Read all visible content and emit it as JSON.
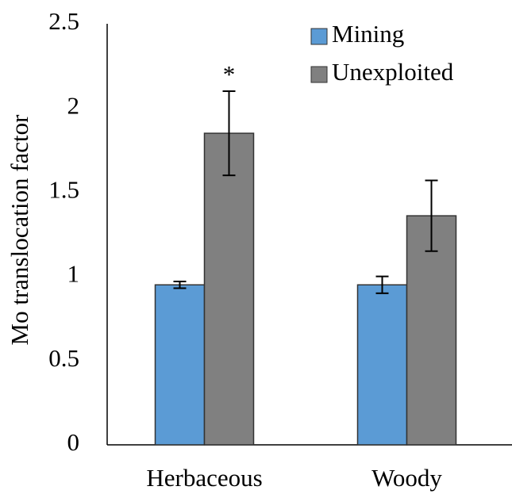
{
  "chart_data": {
    "type": "bar",
    "y_label": "Mo translocation factor",
    "categories": [
      "Herbaceous",
      "Woody"
    ],
    "series": [
      {
        "name": "Mining",
        "color": "#5b9bd5",
        "values": [
          0.95,
          0.95
        ],
        "errors": [
          0.02,
          0.05
        ]
      },
      {
        "name": "Unexploited",
        "color": "#808080",
        "values": [
          1.85,
          1.36
        ],
        "errors": [
          0.25,
          0.21
        ]
      }
    ],
    "annotation": "*",
    "ylim": [
      0,
      2.5
    ],
    "yticks": [
      0,
      0.5,
      1,
      1.5,
      2,
      2.5
    ],
    "grid": false,
    "legend": "top-right"
  }
}
